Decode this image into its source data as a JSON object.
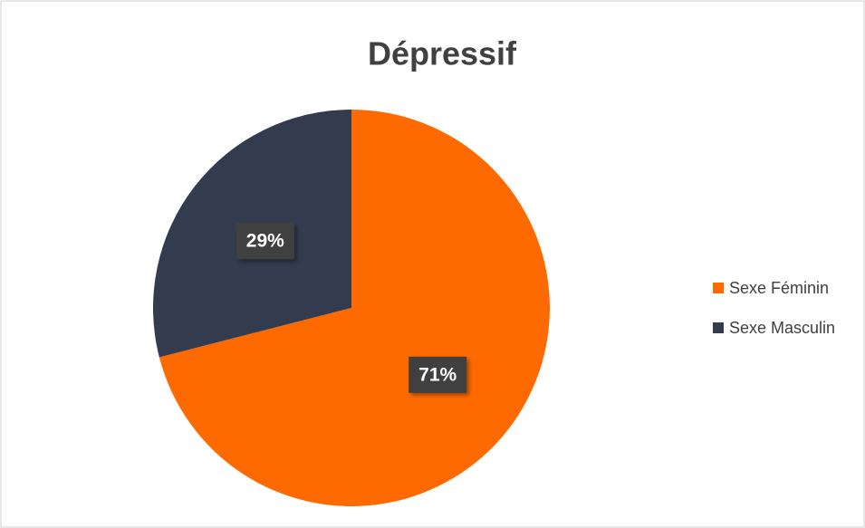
{
  "chart_data": {
    "type": "pie",
    "title": "Dépressif",
    "categories": [
      "Sexe Féminin",
      "Sexe Masculin"
    ],
    "values": [
      71,
      29
    ],
    "value_labels": [
      "71%",
      "29%"
    ],
    "colors": [
      "#ff6a00",
      "#323c4e"
    ],
    "legend": "right"
  }
}
